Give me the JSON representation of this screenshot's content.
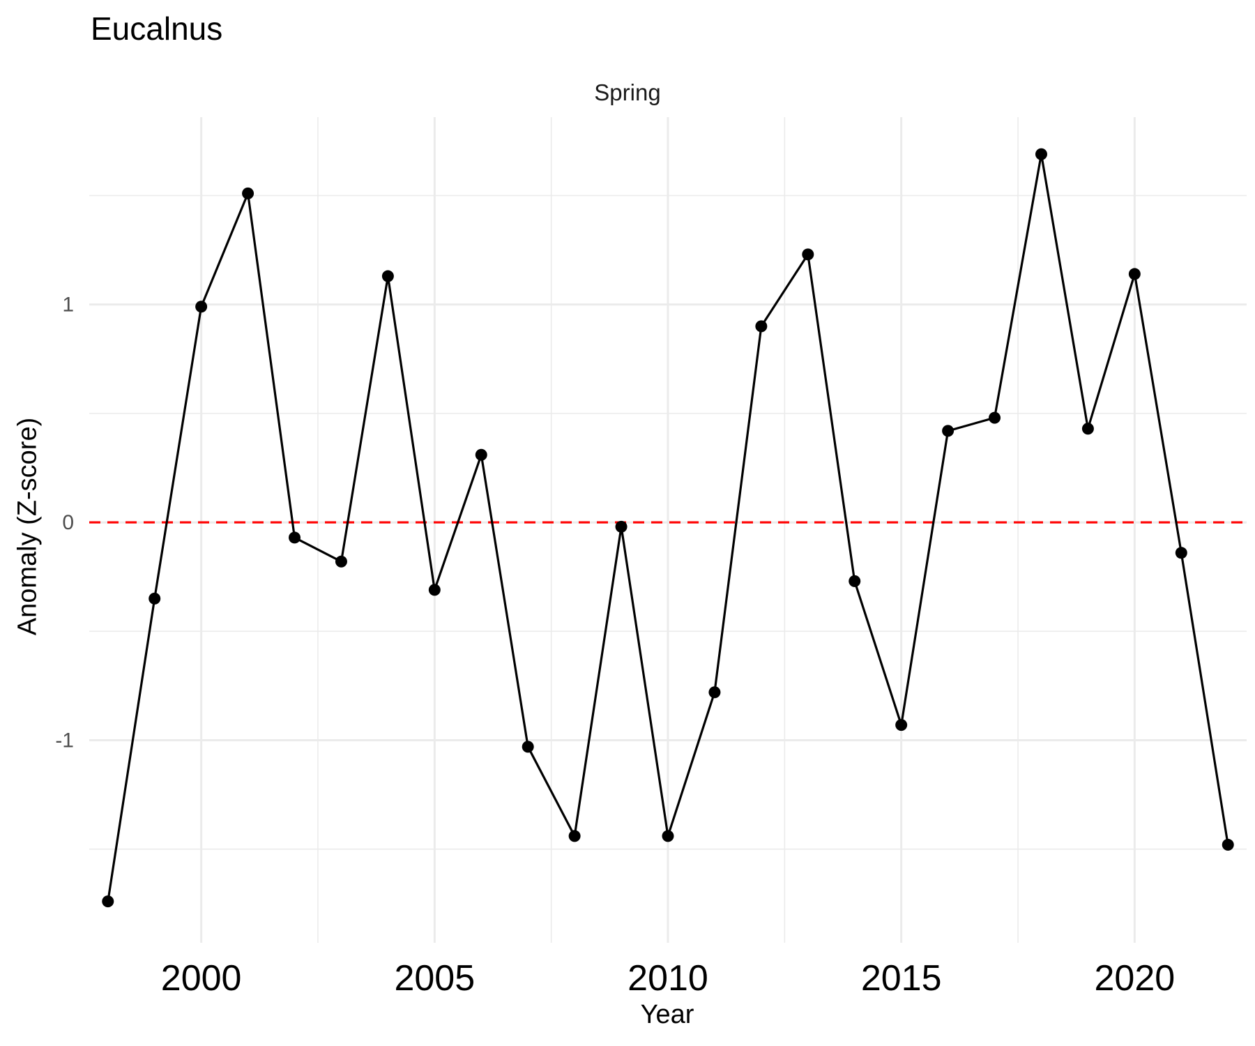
{
  "chart_data": {
    "type": "line",
    "title": "Eucalnus",
    "subtitle": "Spring",
    "xlabel": "Year",
    "ylabel": "Anomaly (Z-score)",
    "xlim": [
      1997.6,
      2022.4
    ],
    "ylim": [
      -1.93,
      1.86
    ],
    "x_ticks": [
      2000,
      2005,
      2010,
      2015,
      2020
    ],
    "x_tick_labels": [
      "2000",
      "2005",
      "2010",
      "2015",
      "2020"
    ],
    "y_ticks": [
      -1,
      0,
      1
    ],
    "y_tick_labels": [
      "-1",
      "0",
      "1"
    ],
    "grid": true,
    "reference_line": {
      "y": 0,
      "style": "dashed",
      "color": "#ff0000"
    },
    "line_color": "#000000",
    "x": [
      1998,
      1999,
      2000,
      2001,
      2002,
      2003,
      2004,
      2005,
      2006,
      2007,
      2008,
      2009,
      2010,
      2011,
      2012,
      2013,
      2014,
      2015,
      2016,
      2017,
      2018,
      2019,
      2020,
      2021,
      2022
    ],
    "values": [
      -1.74,
      -0.35,
      0.99,
      1.51,
      -0.07,
      -0.18,
      1.13,
      -0.31,
      0.31,
      -1.03,
      -1.44,
      -0.02,
      -1.44,
      -0.78,
      0.9,
      1.23,
      -0.27,
      -0.93,
      0.42,
      0.48,
      1.69,
      0.43,
      1.14,
      -0.14,
      -1.48
    ]
  }
}
